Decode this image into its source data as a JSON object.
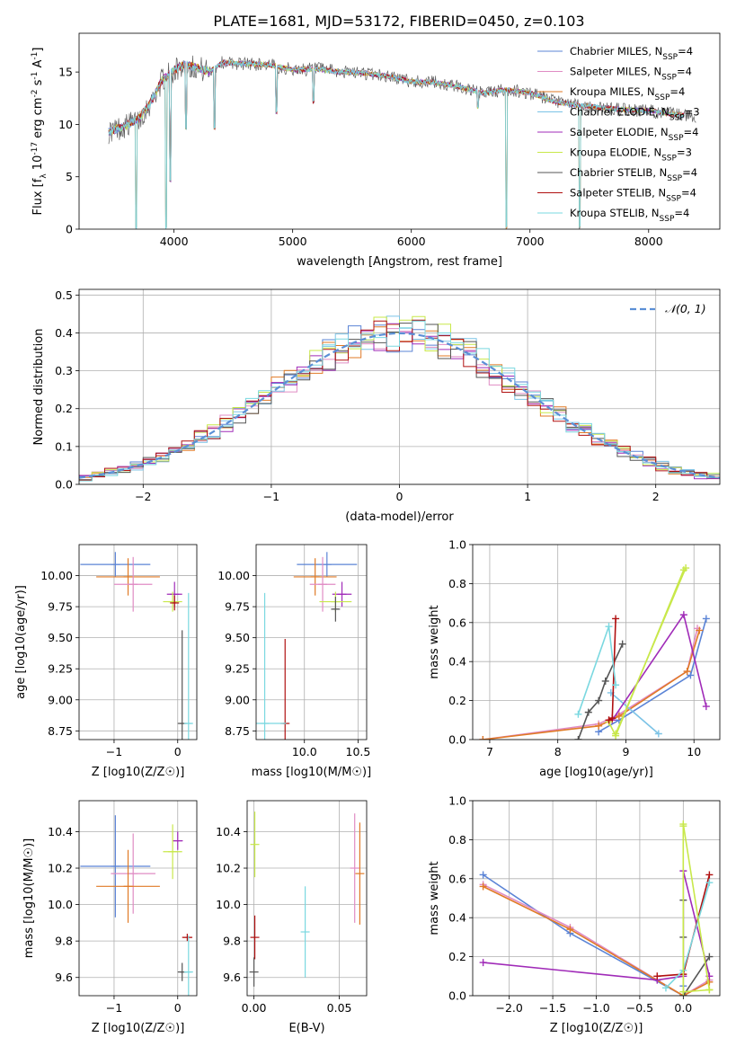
{
  "figure": {
    "title": "PLATE=1681, MJD=53172, FIBERID=0450, z=0.103"
  },
  "legend_colors": {
    "Chabrier MILES": "#5b84d6",
    "Salpeter MILES": "#e08cc4",
    "Kroupa MILES": "#e07a26",
    "Chabrier ELODIE": "#7cc3e6",
    "Salpeter ELODIE": "#a02bb8",
    "Kroupa ELODIE": "#c8e84a",
    "Chabrier STELIB": "#555555",
    "Salpeter STELIB": "#b01010",
    "Kroupa STELIB": "#7ad8e0"
  },
  "chart_data": [
    {
      "id": "spectrum",
      "type": "line",
      "title": "PLATE=1681, MJD=53172, FIBERID=0450, z=0.103",
      "xlabel": "wavelength [Angstrom, rest frame]",
      "ylabel": "Flux [f_λ 10^-17 erg cm^-2 s^-1 A^-1]",
      "xlim": [
        3200,
        8600
      ],
      "ylim": [
        0,
        18.7
      ],
      "xticks": [
        4000,
        5000,
        6000,
        7000,
        8000
      ],
      "yticks": [
        0,
        5,
        10,
        15
      ],
      "grid": false,
      "legend_position": "top-right",
      "legend": [
        {
          "name": "Chabrier MILES, N_SSP=4",
          "color": "#5b84d6"
        },
        {
          "name": "Salpeter MILES, N_SSP=4",
          "color": "#e08cc4"
        },
        {
          "name": "Kroupa MILES, N_SSP=4",
          "color": "#e07a26"
        },
        {
          "name": "Chabrier ELODIE, N_SSP=3",
          "color": "#7cc3e6"
        },
        {
          "name": "Salpeter ELODIE, N_SSP=4",
          "color": "#a02bb8"
        },
        {
          "name": "Kroupa ELODIE, N_SSP=3",
          "color": "#c8e84a"
        },
        {
          "name": "Chabrier STELIB, N_SSP=4",
          "color": "#555555"
        },
        {
          "name": "Salpeter STELIB, N_SSP=4",
          "color": "#b01010"
        },
        {
          "name": "Kroupa STELIB, N_SSP=4",
          "color": "#7ad8e0"
        }
      ],
      "continuum": {
        "x": [
          3450,
          3600,
          3700,
          3800,
          3900,
          4000,
          4100,
          4200,
          4300,
          4400,
          4600,
          4800,
          5000,
          5200,
          5400,
          5600,
          5800,
          6000,
          6200,
          6400,
          6600,
          6800,
          7000,
          7200,
          7400,
          7600,
          7800,
          8000,
          8200,
          8350
        ],
        "y": [
          9.3,
          9.9,
          10.5,
          12.0,
          14.2,
          15.2,
          15.7,
          15.4,
          15.0,
          15.9,
          15.8,
          15.7,
          15.2,
          15.3,
          15.0,
          14.9,
          14.6,
          14.1,
          14.0,
          13.6,
          13.0,
          13.3,
          13.0,
          12.2,
          11.8,
          11.6,
          11.4,
          11.3,
          11.0,
          10.8
        ]
      },
      "absorption_dips": [
        {
          "x": 3680,
          "to": 0.0
        },
        {
          "x": 3934,
          "to": 0.0
        },
        {
          "x": 3969,
          "to": 4.5
        },
        {
          "x": 4102,
          "to": 9.5
        },
        {
          "x": 4340,
          "to": 9.5
        },
        {
          "x": 4861,
          "to": 11.0
        },
        {
          "x": 5175,
          "to": 12.0
        },
        {
          "x": 6563,
          "to": 11.5
        },
        {
          "x": 6800,
          "to": 0.0
        },
        {
          "x": 7420,
          "to": 0.0
        }
      ]
    },
    {
      "id": "residuals",
      "type": "line",
      "xlabel": "(data-model)/error",
      "ylabel": "Normed distribution",
      "xlim": [
        -2.5,
        2.5
      ],
      "ylim": [
        0,
        0.515
      ],
      "xticks": [
        -2,
        -1,
        0,
        1,
        2
      ],
      "yticks": [
        0.0,
        0.1,
        0.2,
        0.3,
        0.4,
        0.5
      ],
      "grid": true,
      "legend_position": "top-right",
      "legend": [
        {
          "name": "N(0,1)",
          "color": "#5b8fd6"
        }
      ],
      "gaussian": {
        "mean": 0,
        "sigma": 1
      },
      "histogram": {
        "bin_width": 0.1,
        "range": [
          -2.5,
          2.5
        ],
        "series_count": 9
      }
    },
    {
      "id": "age_vs_Z",
      "type": "scatter",
      "xlabel": "Z [log10(Z/Z☉)]",
      "ylabel": "age [log10(age/yr)]",
      "xlim": [
        -1.55,
        0.3
      ],
      "ylim": [
        8.68,
        10.25
      ],
      "xticks": [
        -1,
        0
      ],
      "yticks": [
        8.75,
        9.0,
        9.25,
        9.5,
        9.75,
        10.0
      ],
      "grid": true,
      "points": [
        {
          "color": "#5b84d6",
          "x": -0.98,
          "xerr": 0.55,
          "y": 10.09,
          "yerr": 0.1
        },
        {
          "color": "#e07a26",
          "x": -0.78,
          "xerr": 0.5,
          "y": 9.99,
          "yerr": 0.15
        },
        {
          "color": "#e08cc4",
          "x": -0.7,
          "xerr": 0.3,
          "y": 9.93,
          "yerr": 0.22
        },
        {
          "color": "#a02bb8",
          "x": -0.05,
          "xerr": 0.12,
          "y": 9.85,
          "yerr": 0.1
        },
        {
          "color": "#c8e84a",
          "x": -0.08,
          "xerr": 0.15,
          "y": 9.79,
          "yerr": 0.08
        },
        {
          "color": "#b01010",
          "x": -0.05,
          "xerr": 0.03,
          "y": 9.78,
          "yerr": 0.06
        },
        {
          "color": "#555555",
          "x": 0.07,
          "xerr": 0.04,
          "y": 8.81,
          "yerr": 0.75
        },
        {
          "color": "#7ad8e0",
          "x": 0.17,
          "xerr": 0.05,
          "y": 8.81,
          "yerr": 1.05
        }
      ]
    },
    {
      "id": "age_vs_mass",
      "type": "scatter",
      "xlabel": "mass [log10(M/M☉)]",
      "ylabel": "",
      "xlim": [
        9.55,
        10.58
      ],
      "ylim": [
        8.68,
        10.25
      ],
      "xticks": [
        10.0,
        10.5
      ],
      "yticks": [
        8.75,
        9.0,
        9.25,
        9.5,
        9.75,
        10.0
      ],
      "grid": true,
      "points": [
        {
          "color": "#5b84d6",
          "x": 10.21,
          "xerr": 0.28,
          "y": 10.09,
          "yerr": 0.1
        },
        {
          "color": "#e07a26",
          "x": 10.1,
          "xerr": 0.2,
          "y": 9.99,
          "yerr": 0.15
        },
        {
          "color": "#e08cc4",
          "x": 10.17,
          "xerr": 0.12,
          "y": 9.93,
          "yerr": 0.22
        },
        {
          "color": "#a02bb8",
          "x": 10.35,
          "xerr": 0.09,
          "y": 9.85,
          "yerr": 0.1
        },
        {
          "color": "#c8e84a",
          "x": 10.29,
          "xerr": 0.15,
          "y": 9.79,
          "yerr": 0.08
        },
        {
          "color": "#555555",
          "x": 10.29,
          "xerr": 0.03,
          "y": 9.73,
          "yerr": 0.1
        },
        {
          "color": "#b01010",
          "x": 9.82,
          "xerr": 0.02,
          "y": 8.81,
          "yerr": 0.68
        },
        {
          "color": "#7ad8e0",
          "x": 9.63,
          "xerr": 0.2,
          "y": 8.81,
          "yerr": 1.05
        }
      ]
    },
    {
      "id": "weight_vs_age",
      "type": "line",
      "xlabel": "age [log10(age/yr)]",
      "ylabel": "mass weight",
      "xlim": [
        6.75,
        10.38
      ],
      "ylim": [
        0.0,
        1.0
      ],
      "xticks": [
        7,
        8,
        9,
        10
      ],
      "yticks": [
        0.0,
        0.2,
        0.4,
        0.6,
        0.8,
        1.0
      ],
      "grid": true,
      "series": [
        {
          "color": "#5b84d6",
          "x": [
            8.6,
            8.9,
            9.95,
            10.18
          ],
          "y": [
            0.04,
            0.1,
            0.33,
            0.62
          ]
        },
        {
          "color": "#e08cc4",
          "x": [
            6.9,
            8.6,
            8.9,
            9.9,
            10.05
          ],
          "y": [
            0.0,
            0.08,
            0.13,
            0.35,
            0.57
          ]
        },
        {
          "color": "#e07a26",
          "x": [
            6.9,
            8.6,
            8.9,
            9.9,
            10.08
          ],
          "y": [
            0.0,
            0.07,
            0.12,
            0.35,
            0.56
          ]
        },
        {
          "color": "#7cc3e6",
          "x": [
            8.78,
            9.48
          ],
          "y": [
            0.24,
            0.03
          ]
        },
        {
          "color": "#a02bb8",
          "x": [
            8.8,
            9.85,
            10.18
          ],
          "y": [
            0.1,
            0.64,
            0.17
          ]
        },
        {
          "color": "#c8e84a",
          "x": [
            8.75,
            8.85,
            9.85
          ],
          "y": [
            0.09,
            0.02,
            0.87
          ]
        },
        {
          "color": "#555555",
          "x": [
            8.3,
            8.45,
            8.6,
            8.7,
            8.95
          ],
          "y": [
            0.0,
            0.14,
            0.2,
            0.3,
            0.49
          ]
        },
        {
          "color": "#b01010",
          "x": [
            8.75,
            8.8,
            8.85
          ],
          "y": [
            0.1,
            0.11,
            0.62
          ]
        },
        {
          "color": "#7ad8e0",
          "x": [
            8.3,
            8.75,
            8.85
          ],
          "y": [
            0.13,
            0.58,
            0.28
          ]
        },
        {
          "color": "#c8e84a",
          "x": [
            8.85,
            9.88
          ],
          "y": [
            0.03,
            0.88
          ]
        }
      ]
    },
    {
      "id": "mass_vs_Z",
      "type": "scatter",
      "xlabel": "Z [log10(Z/Z☉)]",
      "ylabel": "mass [log10(M/M☉)]",
      "xlim": [
        -1.55,
        0.3
      ],
      "ylim": [
        9.5,
        10.57
      ],
      "xticks": [
        -1,
        0
      ],
      "yticks": [
        9.6,
        9.8,
        10.0,
        10.2,
        10.4
      ],
      "grid": true,
      "points": [
        {
          "color": "#5b84d6",
          "x": -0.98,
          "xerr": 0.55,
          "y": 10.21,
          "yerr": 0.28
        },
        {
          "color": "#e08cc4",
          "x": -0.7,
          "xerr": 0.35,
          "y": 10.17,
          "yerr": 0.22
        },
        {
          "color": "#e07a26",
          "x": -0.78,
          "xerr": 0.5,
          "y": 10.1,
          "yerr": 0.2
        },
        {
          "color": "#a02bb8",
          "x": 0.0,
          "xerr": 0.08,
          "y": 10.35,
          "yerr": 0.05
        },
        {
          "color": "#c8e84a",
          "x": -0.08,
          "xerr": 0.15,
          "y": 10.29,
          "yerr": 0.15
        },
        {
          "color": "#555555",
          "x": 0.07,
          "xerr": 0.03,
          "y": 9.63,
          "yerr": 0.05
        },
        {
          "color": "#b01010",
          "x": 0.15,
          "xerr": 0.08,
          "y": 9.82,
          "yerr": 0.02
        },
        {
          "color": "#7ad8e0",
          "x": 0.17,
          "xerr": 0.05,
          "y": 9.63,
          "yerr": 0.2
        }
      ]
    },
    {
      "id": "mass_vs_EBV",
      "type": "scatter",
      "xlabel": "E(B-V)",
      "ylabel": "",
      "xlim": [
        -0.004,
        0.066
      ],
      "ylim": [
        9.5,
        10.57
      ],
      "xticks": [
        0.0,
        0.05
      ],
      "yticks": [
        9.6,
        9.8,
        10.0,
        10.2,
        10.4
      ],
      "grid": true,
      "points": [
        {
          "color": "#c8e84a",
          "x": 0.0005,
          "xerr": 0.0,
          "y": 10.33,
          "yerr": 0.18
        },
        {
          "color": "#b01010",
          "x": 0.0005,
          "xerr": 0.0,
          "y": 9.82,
          "yerr": 0.12
        },
        {
          "color": "#555555",
          "x": 0.0,
          "xerr": 0.0,
          "y": 9.63,
          "yerr": 0.08
        },
        {
          "color": "#7ad8e0",
          "x": 0.03,
          "xerr": 0.0,
          "y": 9.85,
          "yerr": 0.25
        },
        {
          "color": "#e08cc4",
          "x": 0.059,
          "xerr": 0.0,
          "y": 10.2,
          "yerr": 0.3
        },
        {
          "color": "#e07a26",
          "x": 0.062,
          "xerr": 0.0,
          "y": 10.17,
          "yerr": 0.28
        }
      ]
    },
    {
      "id": "weight_vs_Z",
      "type": "line",
      "xlabel": "Z [log10(Z/Z☉)]",
      "ylabel": "mass weight",
      "xlim": [
        -2.42,
        0.42
      ],
      "ylim": [
        0.0,
        1.0
      ],
      "xticks": [
        -2.0,
        -1.5,
        -1.0,
        -0.5,
        0.0
      ],
      "yticks": [
        0.0,
        0.2,
        0.4,
        0.6,
        0.8,
        1.0
      ],
      "grid": true,
      "series": [
        {
          "color": "#5b84d6",
          "x": [
            -2.3,
            -1.3,
            0.0,
            0.0
          ],
          "y": [
            0.62,
            0.32,
            0.0,
            0.05
          ]
        },
        {
          "color": "#e08cc4",
          "x": [
            -2.3,
            -1.3,
            0.0,
            0.3
          ],
          "y": [
            0.57,
            0.35,
            0.0,
            0.08
          ]
        },
        {
          "color": "#e07a26",
          "x": [
            -2.3,
            -1.3,
            0.0,
            0.3
          ],
          "y": [
            0.56,
            0.34,
            0.0,
            0.07
          ]
        },
        {
          "color": "#a02bb8",
          "x": [
            -2.3,
            -0.3,
            0.0,
            0.0,
            0.3
          ],
          "y": [
            0.17,
            0.08,
            0.1,
            0.64,
            0.1
          ]
        },
        {
          "color": "#555555",
          "x": [
            0.0,
            0.0,
            0.0,
            0.3
          ],
          "y": [
            0.49,
            0.3,
            0.0,
            0.2
          ]
        },
        {
          "color": "#b01010",
          "x": [
            -0.3,
            0.0,
            0.3
          ],
          "y": [
            0.1,
            0.11,
            0.62
          ]
        },
        {
          "color": "#7ad8e0",
          "x": [
            -0.2,
            0.0,
            0.3
          ],
          "y": [
            0.04,
            0.13,
            0.58
          ]
        },
        {
          "color": "#c8e84a",
          "x": [
            0.0,
            0.0,
            0.3
          ],
          "y": [
            0.87,
            0.02,
            0.03
          ]
        },
        {
          "color": "#c8e84a",
          "x": [
            0.0,
            0.3
          ],
          "y": [
            0.88,
            0.03
          ]
        }
      ]
    }
  ]
}
